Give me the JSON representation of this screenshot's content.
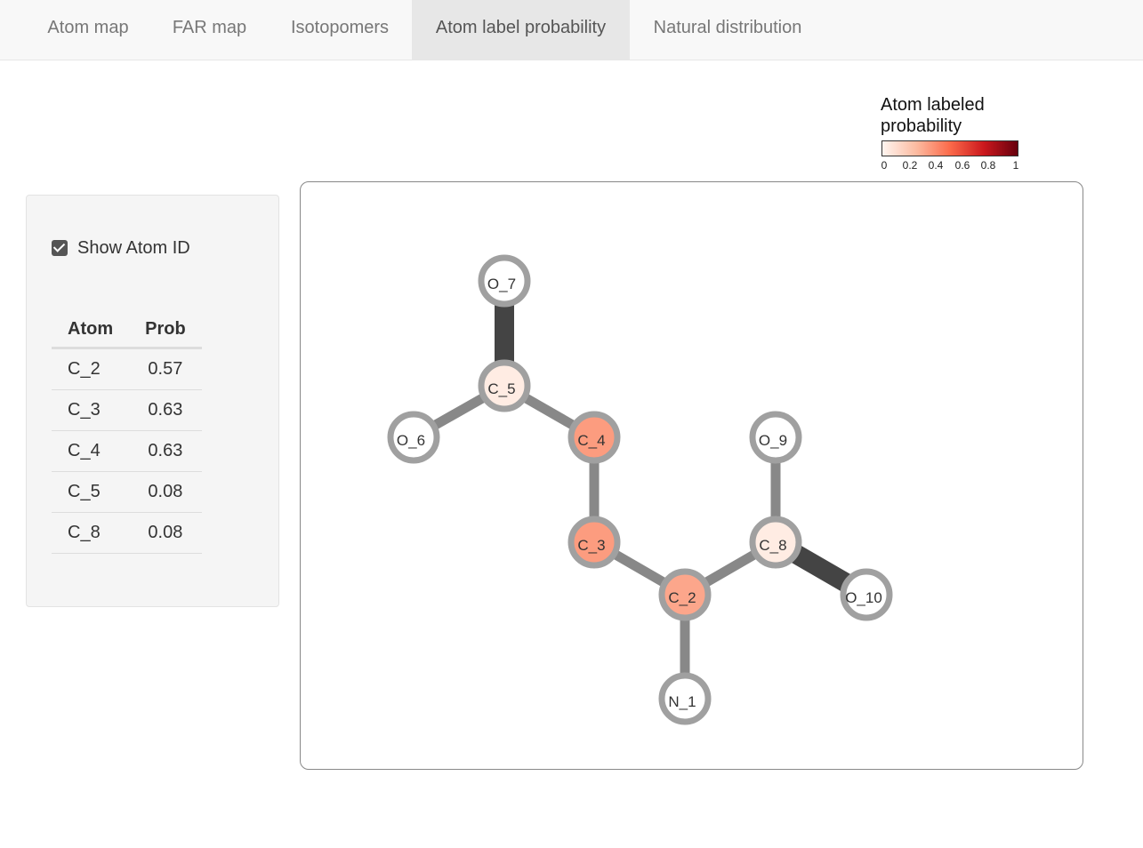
{
  "tabs": [
    {
      "label": "Atom map"
    },
    {
      "label": "FAR map"
    },
    {
      "label": "Isotopomers"
    },
    {
      "label": "Atom label probability",
      "active": true
    },
    {
      "label": "Natural distribution"
    }
  ],
  "sidebar": {
    "show_atom_id": {
      "label": "Show Atom ID",
      "checked": true
    },
    "table": {
      "headers": [
        "Atom",
        "Prob"
      ],
      "rows": [
        {
          "atom": "C_2",
          "prob": "0.57"
        },
        {
          "atom": "C_3",
          "prob": "0.63"
        },
        {
          "atom": "C_4",
          "prob": "0.63"
        },
        {
          "atom": "C_5",
          "prob": "0.08"
        },
        {
          "atom": "C_8",
          "prob": "0.08"
        }
      ]
    }
  },
  "legend": {
    "title_line1": "Atom labeled",
    "title_line2": "probability",
    "ticks": [
      "0",
      "0.2",
      "0.4",
      "0.6",
      "0.8",
      "1"
    ],
    "colors": [
      "#fff5f0",
      "#fcbba1",
      "#fb6a4a",
      "#cb181d",
      "#67000d"
    ]
  },
  "molecule": {
    "atoms": [
      {
        "id": "O_7",
        "prob": 0
      },
      {
        "id": "C_5",
        "prob": 0.08
      },
      {
        "id": "O_6",
        "prob": 0
      },
      {
        "id": "C_4",
        "prob": 0.63
      },
      {
        "id": "C_3",
        "prob": 0.63
      },
      {
        "id": "C_2",
        "prob": 0.57
      },
      {
        "id": "C_8",
        "prob": 0.08
      },
      {
        "id": "O_9",
        "prob": 0
      },
      {
        "id": "O_10",
        "prob": 0
      },
      {
        "id": "N_1",
        "prob": 0
      }
    ],
    "bonds": [
      {
        "a": "O_7",
        "b": "C_5",
        "order": 2
      },
      {
        "a": "C_5",
        "b": "O_6",
        "order": 1
      },
      {
        "a": "C_5",
        "b": "C_4",
        "order": 1
      },
      {
        "a": "C_4",
        "b": "C_3",
        "order": 1
      },
      {
        "a": "C_3",
        "b": "C_2",
        "order": 1
      },
      {
        "a": "C_2",
        "b": "C_8",
        "order": 1
      },
      {
        "a": "C_8",
        "b": "O_9",
        "order": 1
      },
      {
        "a": "C_8",
        "b": "O_10",
        "order": 2
      },
      {
        "a": "C_2",
        "b": "N_1",
        "order": 1
      }
    ]
  }
}
